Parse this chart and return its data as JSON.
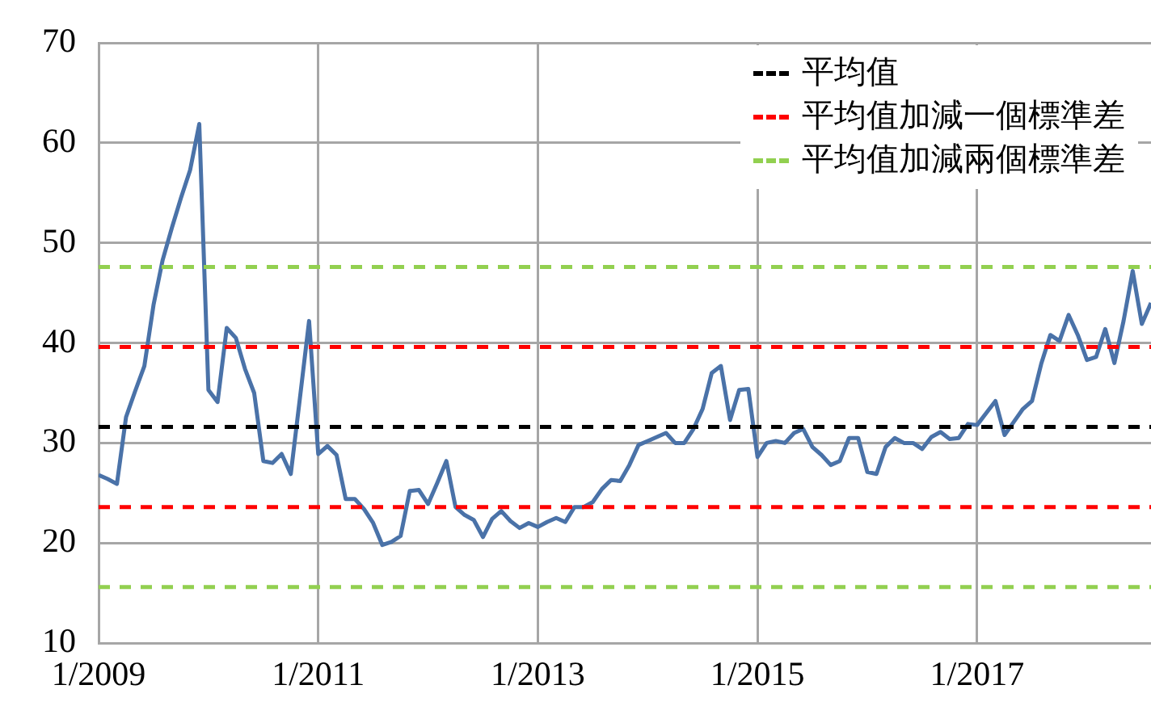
{
  "chart_data": {
    "type": "line",
    "x": [
      "2009-01",
      "2009-02",
      "2009-03",
      "2009-04",
      "2009-05",
      "2009-06",
      "2009-07",
      "2009-08",
      "2009-09",
      "2009-10",
      "2009-11",
      "2009-12",
      "2010-01",
      "2010-02",
      "2010-03",
      "2010-04",
      "2010-05",
      "2010-06",
      "2010-07",
      "2010-08",
      "2010-09",
      "2010-10",
      "2010-11",
      "2010-12",
      "2011-01",
      "2011-02",
      "2011-03",
      "2011-04",
      "2011-05",
      "2011-06",
      "2011-07",
      "2011-08",
      "2011-09",
      "2011-10",
      "2011-11",
      "2011-12",
      "2012-01",
      "2012-02",
      "2012-03",
      "2012-04",
      "2012-05",
      "2012-06",
      "2012-07",
      "2012-08",
      "2012-09",
      "2012-10",
      "2012-11",
      "2012-12",
      "2013-01",
      "2013-02",
      "2013-03",
      "2013-04",
      "2013-05",
      "2013-06",
      "2013-07",
      "2013-08",
      "2013-09",
      "2013-10",
      "2013-11",
      "2013-12",
      "2014-01",
      "2014-02",
      "2014-03",
      "2014-04",
      "2014-05",
      "2014-06",
      "2014-07",
      "2014-08",
      "2014-09",
      "2014-10",
      "2014-11",
      "2014-12",
      "2015-01",
      "2015-02",
      "2015-03",
      "2015-04",
      "2015-05",
      "2015-06",
      "2015-07",
      "2015-08",
      "2015-09",
      "2015-10",
      "2015-11",
      "2015-12",
      "2016-01",
      "2016-02",
      "2016-03",
      "2016-04",
      "2016-05",
      "2016-06",
      "2016-07",
      "2016-08",
      "2016-09",
      "2016-10",
      "2016-11",
      "2016-12",
      "2017-01",
      "2017-02",
      "2017-03",
      "2017-04",
      "2017-05",
      "2017-06",
      "2017-07",
      "2017-08",
      "2017-09",
      "2017-10",
      "2017-11",
      "2017-12",
      "2018-01",
      "2018-02",
      "2018-03",
      "2018-04",
      "2018-05",
      "2018-06",
      "2018-07",
      "2018-08"
    ],
    "series": [
      {
        "color": "#4a72a8",
        "values": [
          26.8,
          26.4,
          25.9,
          32.6,
          35.2,
          37.7,
          43.8,
          48.3,
          51.5,
          54.5,
          57.3,
          61.9,
          35.3,
          34.1,
          41.5,
          40.5,
          37.4,
          35.0,
          28.2,
          28.0,
          28.9,
          26.9,
          34.5,
          42.2,
          28.9,
          29.7,
          28.8,
          24.4,
          24.4,
          23.4,
          22.0,
          19.8,
          20.1,
          20.7,
          25.2,
          25.3,
          23.9,
          26.0,
          28.2,
          23.6,
          22.8,
          22.3,
          20.6,
          22.4,
          23.2,
          22.2,
          21.5,
          22.0,
          21.6,
          22.1,
          22.5,
          22.1,
          23.6,
          23.6,
          24.1,
          25.4,
          26.3,
          26.2,
          27.8,
          29.8,
          30.2,
          30.6,
          31.0,
          30.0,
          30.0,
          31.4,
          33.4,
          37.0,
          37.7,
          32.3,
          35.3,
          35.4,
          28.6,
          30.0,
          30.2,
          30.0,
          31.0,
          31.4,
          29.6,
          28.8,
          27.8,
          28.2,
          30.5,
          30.5,
          27.1,
          26.9,
          29.6,
          30.5,
          30.0,
          30.0,
          29.4,
          30.6,
          31.1,
          30.4,
          30.5,
          31.9,
          31.8,
          33.0,
          34.2,
          30.8,
          32.1,
          33.4,
          34.2,
          37.9,
          40.8,
          40.2,
          42.8,
          40.8,
          38.3,
          38.6,
          41.4,
          38.0,
          42.2,
          47.2,
          41.9,
          44.0
        ]
      }
    ],
    "ref_lines": [
      {
        "axis": "y",
        "value": 31.6,
        "label": "平均值",
        "color": "#000000",
        "line_style": "dashed"
      },
      {
        "axis": "y",
        "value": 39.6,
        "label": "平均值加減一個標準差",
        "color": "#ff0000",
        "line_style": "dashed"
      },
      {
        "axis": "y",
        "value": 23.6,
        "color": "#ff0000",
        "line_style": "dashed"
      },
      {
        "axis": "y",
        "value": 47.6,
        "label": "平均值加減兩個標準差",
        "color": "#92d050",
        "line_style": "dashed"
      },
      {
        "axis": "y",
        "value": 15.6,
        "color": "#92d050",
        "line_style": "dashed"
      }
    ],
    "xlim": [
      "2009-01",
      "2018-08"
    ],
    "xticks": [
      {
        "value": "2009-01",
        "label": "1/2009"
      },
      {
        "value": "2011-01",
        "label": "1/2011"
      },
      {
        "value": "2013-01",
        "label": "1/2013"
      },
      {
        "value": "2015-01",
        "label": "1/2015"
      },
      {
        "value": "2017-01",
        "label": "1/2017"
      }
    ],
    "ylim": [
      10,
      70
    ],
    "yticks": [
      10,
      20,
      30,
      40,
      50,
      60,
      70
    ],
    "grid": true,
    "legend": "top right",
    "marker": "none",
    "line_style": "solid"
  }
}
